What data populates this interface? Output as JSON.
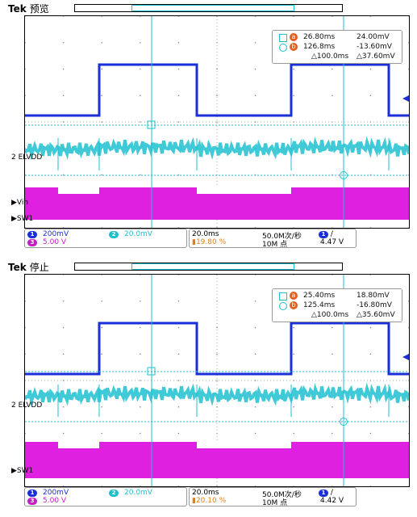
{
  "scopes": [
    {
      "brand": "Tek",
      "state": "预览",
      "cursor_a_label": "a",
      "cursor_b_label": "b",
      "readout": {
        "a_time": "26.80ms",
        "a_volt": "24.00mV",
        "b_time": "126.8ms",
        "b_volt": "-13.60mV",
        "d_time": "△100.0ms",
        "d_volt": "△37.60mV"
      },
      "channel_labels": {
        "elvdd": "ELVDD",
        "vin": "Vin",
        "sw1": "SW1",
        "ch2_num": "2"
      },
      "footer": {
        "ch1_num": "1",
        "ch1_scale": "200mV",
        "ch2_num": "2",
        "ch2_scale": "20.0mV",
        "ch3_num": "3",
        "ch3_scale": "5.00 V",
        "timebase": "20.0ms",
        "trigger_pos": "19.80 %",
        "sample_rate": "50.0M次/秒",
        "record_len": "10M 点",
        "trig_ch": "1",
        "trig_level": "4.47 V"
      },
      "colors": {
        "ch1": "#1a2fd8",
        "ch2": "#1ec0d0",
        "ch3": "#e020e0"
      }
    },
    {
      "brand": "Tek",
      "state": "停止",
      "cursor_a_label": "a",
      "cursor_b_label": "b",
      "readout": {
        "a_time": "25.40ms",
        "a_volt": "18.80mV",
        "b_time": "125.4ms",
        "b_volt": "-16.80mV",
        "d_time": "△100.0ms",
        "d_volt": "△35.60mV"
      },
      "channel_labels": {
        "elvdd": "ELVDD",
        "vin": "",
        "sw1": "SW1",
        "ch2_num": "2"
      },
      "footer": {
        "ch1_num": "1",
        "ch1_scale": "200mV",
        "ch2_num": "2",
        "ch2_scale": "20.0mV",
        "ch3_num": "3",
        "ch3_scale": "5.00 V",
        "timebase": "20.0ms",
        "trigger_pos": "20.10 %",
        "sample_rate": "50.0M次/秒",
        "record_len": "10M 点",
        "trig_ch": "1",
        "trig_level": "4.42 V"
      },
      "colors": {
        "ch1": "#1a2fd8",
        "ch2": "#1ec0d0",
        "ch3": "#e020e0"
      }
    }
  ]
}
